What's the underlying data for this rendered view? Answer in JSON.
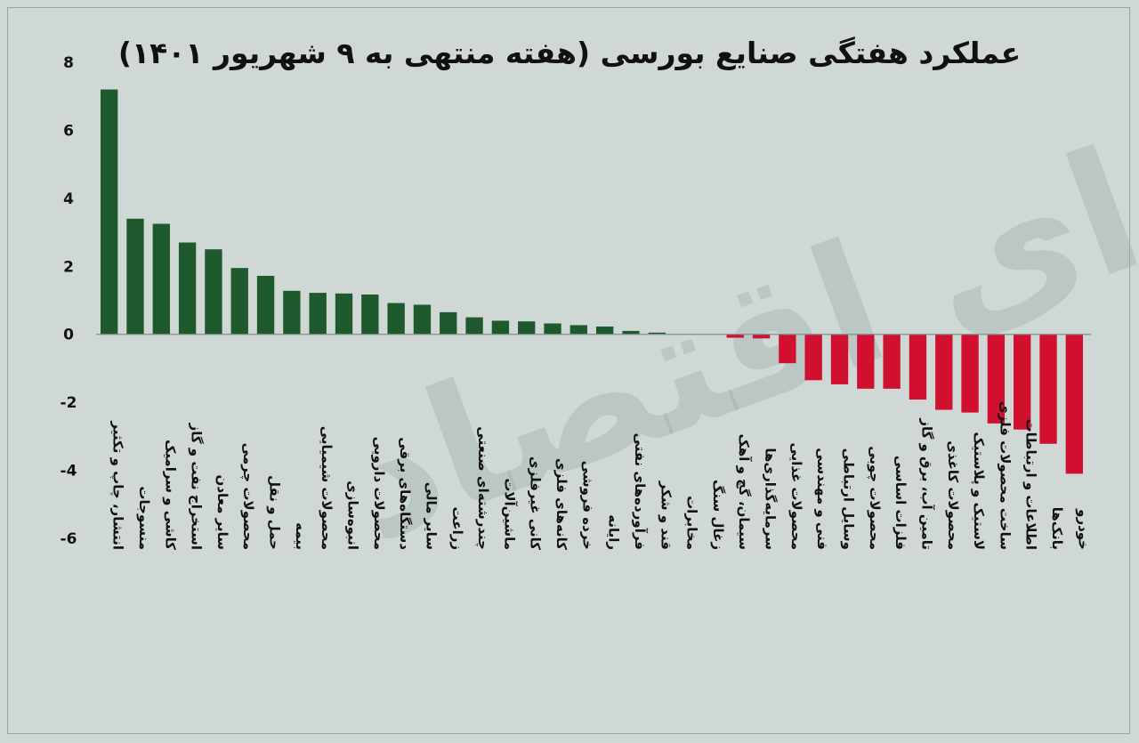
{
  "title": "عملکرد هفتگی صنایع بورسی (هفته منتهی به ۹ شهریور ۱۴۰۱)",
  "watermark": "فردای اقتصاد",
  "colors": {
    "positive": "#1e5a2e",
    "negative": "#d0102e",
    "background": "#d0d8d6",
    "axis": "#7d8e8a"
  },
  "chart_data": {
    "type": "bar",
    "title": "عملکرد هفتگی صنایع بورسی (هفته منتهی به ۹ شهریور ۱۴۰۱)",
    "xlabel": "",
    "ylabel": "",
    "ylim": [
      -6,
      8
    ],
    "yticks": [
      8,
      6,
      4,
      2,
      0,
      -2,
      -4,
      -6
    ],
    "ytick_labels": [
      "8",
      "6",
      "4",
      "2",
      "0",
      "-2",
      "-4",
      "-6"
    ],
    "grid": false,
    "categories": [
      "انتشار، چاپ و تکثیر",
      "منسوجات",
      "کاشی و سرامیک",
      "استخراج نفت و گاز",
      "سایر معادن",
      "محصولات چرمی",
      "حمل و نقل",
      "بیمه",
      "محصولات شیمیایی",
      "انبوه‌سازی",
      "محصولات دارویی",
      "دستگاه‌های برقی",
      "سایر مالی",
      "زراعت",
      "چندرشته‌ای صنعتی",
      "ماشین‌آلات",
      "کانی غیرفلزی",
      "کانه‌های فلزی",
      "خرده فروشی",
      "رایانه",
      "فرآورده‌های نفتی",
      "قند و شکر",
      "مخابرات",
      "زغال سنگ",
      "سیمان، گچ و آهک",
      "سرمایه‌گذاری‌ها",
      "محصولات غذایی",
      "فنی و مهندسی",
      "وسایل ارتباطی",
      "محصولات چوبی",
      "فلزات اساسی",
      "تامین آب، برق و گاز",
      "محصولات کاغذی",
      "لاستیک و پلاستیک",
      "ساخت محصولات فلزی",
      "اطلاعات و ارتباطات",
      "بانک‌ها",
      "خودرو"
    ],
    "values": [
      7.2,
      3.4,
      3.25,
      2.7,
      2.5,
      1.95,
      1.72,
      1.28,
      1.22,
      1.2,
      1.17,
      0.92,
      0.87,
      0.65,
      0.5,
      0.4,
      0.38,
      0.32,
      0.27,
      0.23,
      0.1,
      0.05,
      0.0,
      0.0,
      -0.1,
      -0.12,
      -0.85,
      -1.35,
      -1.47,
      -1.6,
      -1.6,
      -1.92,
      -2.22,
      -2.3,
      -2.62,
      -2.8,
      -3.22,
      -4.1
    ]
  }
}
